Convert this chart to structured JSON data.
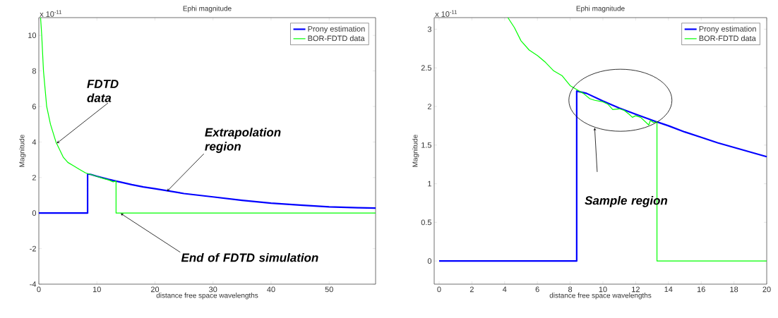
{
  "chart_data": [
    {
      "type": "line",
      "title": "Ephi magnitude",
      "xlabel": "distance free space wavelengths",
      "ylabel": "Magnitude",
      "xlim": [
        0,
        58
      ],
      "ylim": [
        -4,
        11
      ],
      "xticks": [
        0,
        10,
        20,
        30,
        40,
        50
      ],
      "yticks": [
        -4,
        -2,
        0,
        2,
        4,
        6,
        8,
        10
      ],
      "legend": "top right",
      "series": [
        {
          "name": "Prony estimation",
          "color": "#0000ff",
          "x": [
            0,
            8.4,
            8.4,
            9,
            10,
            12,
            13.3,
            14,
            16,
            18,
            20,
            25,
            30,
            35,
            40,
            45,
            50,
            55,
            58
          ],
          "values": [
            0,
            0,
            2.2,
            2.17,
            2.07,
            1.9,
            1.8,
            1.75,
            1.6,
            1.47,
            1.37,
            1.1,
            0.91,
            0.72,
            0.56,
            0.45,
            0.35,
            0.3,
            0.28
          ]
        },
        {
          "name": "BOR-FDTD data",
          "color": "#00ff00",
          "x": [
            0.3,
            0.5,
            0.8,
            1.35,
            2.0,
            2.95,
            4.2,
            5,
            6,
            7,
            8,
            8.4,
            9,
            10,
            11,
            12,
            12.8,
            13.3,
            13.3,
            58
          ],
          "values": [
            11,
            10,
            8,
            6,
            5,
            4,
            3.15,
            2.85,
            2.66,
            2.46,
            2.27,
            2.22,
            2.17,
            2.06,
            1.96,
            1.87,
            1.76,
            1.8,
            0,
            0
          ]
        }
      ],
      "annotations": [
        "x 10$^{-11}$",
        {
          "text": "FDTD data",
          "x": 3,
          "y": 3.9
        },
        {
          "text": "Extrapolation region",
          "x": 22,
          "y": 1.2
        },
        {
          "text": "End of FDTD simulation",
          "x": 14,
          "y": 0
        }
      ]
    },
    {
      "type": "line",
      "title": "Ephi magnitude",
      "xlabel": "distance free space wavelengths",
      "ylabel": "Magnitude",
      "xlim": [
        -0.3,
        20
      ],
      "ylim": [
        -0.3,
        3.15
      ],
      "xticks": [
        0,
        2,
        4,
        6,
        8,
        10,
        12,
        14,
        16,
        18,
        20
      ],
      "yticks": [
        0,
        0.5,
        1,
        1.5,
        2,
        2.5,
        3
      ],
      "legend": "top right",
      "series": [
        {
          "name": "Prony estimation",
          "color": "#0000ff",
          "x": [
            0,
            8.4,
            8.4,
            9,
            10,
            11,
            12,
            13.3,
            14,
            15,
            16,
            17,
            18,
            19,
            20
          ],
          "values": [
            0,
            0,
            2.2,
            2.17,
            2.07,
            1.98,
            1.9,
            1.8,
            1.75,
            1.67,
            1.6,
            1.53,
            1.47,
            1.41,
            1.35
          ]
        },
        {
          "name": "BOR-FDTD data",
          "color": "#00ff00",
          "x": [
            4.2,
            4.6,
            5,
            5.5,
            6,
            6.5,
            7,
            7.5,
            8,
            8.4,
            8.8,
            9.2,
            9.5,
            10,
            10.3,
            10.6,
            11,
            11.3,
            11.6,
            11.8,
            12,
            12.3,
            12.5,
            12.7,
            12.8,
            12.9,
            13.1,
            13.3,
            13.3,
            20
          ],
          "values": [
            3.15,
            3.02,
            2.85,
            2.73,
            2.66,
            2.57,
            2.46,
            2.4,
            2.27,
            2.22,
            2.17,
            2.1,
            2.08,
            2.06,
            2.03,
            1.96,
            1.97,
            1.95,
            1.9,
            1.86,
            1.88,
            1.86,
            1.82,
            1.78,
            1.76,
            1.82,
            1.79,
            1.8,
            0,
            0
          ]
        }
      ],
      "annotations": [
        "x 10$^{-11}$",
        "Sample region"
      ]
    }
  ]
}
